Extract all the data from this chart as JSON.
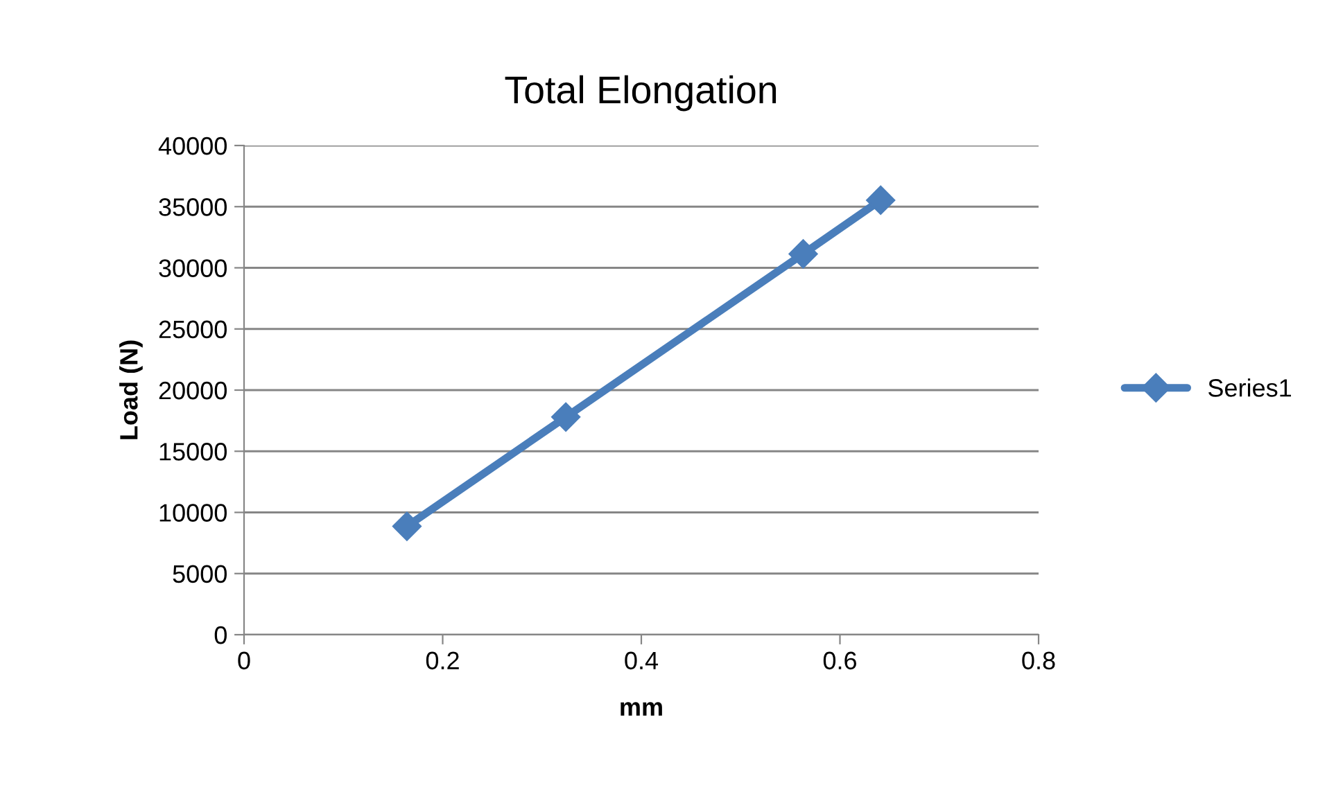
{
  "chart_data": {
    "type": "line",
    "title": "Total Elongation",
    "xlabel": "mm",
    "ylabel": "Load (N)",
    "series": [
      {
        "name": "Series1",
        "color": "#4a7ebb",
        "x": [
          0.164,
          0.324,
          0.563,
          0.641
        ],
        "values": [
          8860,
          17800,
          31140,
          35530
        ]
      }
    ],
    "xlim": [
      0,
      0.8
    ],
    "xticks": [
      0,
      {
        "value": 0.2,
        "label": "0.2"
      },
      {
        "value": 0.4,
        "label": "0.4"
      },
      {
        "value": 0.6,
        "label": "0.6"
      },
      {
        "value": 0.8,
        "label": "0.8"
      }
    ],
    "ylim": [
      0,
      40000
    ],
    "yticks": [
      0,
      5000,
      10000,
      15000,
      20000,
      25000,
      30000,
      35000,
      40000
    ],
    "grid": "y",
    "legend": "right",
    "marker": "diamond",
    "line_style": "solid"
  }
}
